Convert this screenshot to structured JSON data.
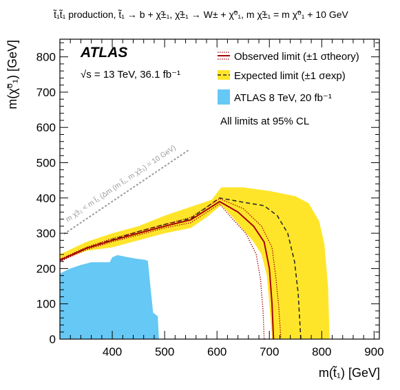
{
  "header": {
    "title": "t̃₁t̃₁ production, t̃₁ → b + χ̃±₁, χ̃±₁ → W± + χ̃⁰₁, m χ̃±₁ = m χ̃⁰₁ + 10 GeV"
  },
  "labels": {
    "atlas": "ATLAS",
    "energy": "√s = 13 TeV, 36.1 fb⁻¹",
    "cl_note": "All limits at 95% CL",
    "diagonal": "m χ̃±₁ < m t̃₁ (Δm (m t̃₁, m χ̃±₁) = 10 GeV)"
  },
  "colors": {
    "observed": "#a50000",
    "expected_band": "#ffe52a",
    "expected_line": "#2b2b2b",
    "atlas8": "#66c8f5",
    "diagonal": "#9a9a9a"
  },
  "chart_data": {
    "type": "area",
    "xlabel": "m(t̃₁) [GeV]",
    "ylabel": "m(χ̃⁰₁) [GeV]",
    "xlim": [
      300,
      910
    ],
    "ylim": [
      0,
      850
    ],
    "xticks": [
      400,
      500,
      600,
      700,
      800,
      900
    ],
    "yticks": [
      0,
      100,
      200,
      300,
      400,
      500,
      600,
      700,
      800
    ],
    "legend": {
      "placement": "top-right",
      "entries": [
        {
          "key": "observed",
          "label": "Observed limit (±1 σtheory)"
        },
        {
          "key": "expected",
          "label": "Expected limit (±1 σexp)"
        },
        {
          "key": "atlas8",
          "label": "ATLAS 8 TeV, 20 fb⁻¹"
        }
      ]
    },
    "series": [
      {
        "key": "expected_band",
        "points": [
          [
            300,
            240
          ],
          [
            350,
            275
          ],
          [
            400,
            300
          ],
          [
            450,
            320
          ],
          [
            500,
            350
          ],
          [
            550,
            375
          ],
          [
            590,
            395
          ],
          [
            608,
            430
          ],
          [
            650,
            430
          ],
          [
            700,
            420
          ],
          [
            750,
            405
          ],
          [
            775,
            385
          ],
          [
            795,
            335
          ],
          [
            805,
            270
          ],
          [
            812,
            150
          ],
          [
            815,
            0
          ],
          [
            705,
            0
          ],
          [
            700,
            100
          ],
          [
            695,
            180
          ],
          [
            685,
            240
          ],
          [
            670,
            275
          ],
          [
            650,
            310
          ],
          [
            630,
            345
          ],
          [
            608,
            380
          ],
          [
            580,
            345
          ],
          [
            550,
            315
          ],
          [
            500,
            300
          ],
          [
            450,
            280
          ],
          [
            400,
            260
          ],
          [
            350,
            250
          ],
          [
            310,
            228
          ],
          [
            300,
            225
          ]
        ]
      },
      {
        "key": "expected",
        "points": [
          [
            300,
            225
          ],
          [
            350,
            258
          ],
          [
            400,
            282
          ],
          [
            450,
            305
          ],
          [
            500,
            325
          ],
          [
            550,
            342
          ],
          [
            605,
            400
          ],
          [
            650,
            388
          ],
          [
            690,
            378
          ],
          [
            715,
            350
          ],
          [
            735,
            300
          ],
          [
            748,
            220
          ],
          [
            755,
            130
          ],
          [
            760,
            0
          ]
        ]
      },
      {
        "key": "observed",
        "points": [
          [
            300,
            223
          ],
          [
            350,
            257
          ],
          [
            400,
            280
          ],
          [
            450,
            300
          ],
          [
            500,
            320
          ],
          [
            550,
            338
          ],
          [
            605,
            390
          ],
          [
            640,
            360
          ],
          [
            670,
            320
          ],
          [
            690,
            275
          ],
          [
            700,
            200
          ],
          [
            705,
            100
          ],
          [
            708,
            0
          ]
        ]
      },
      {
        "key": "observed_up",
        "points": [
          [
            300,
            226
          ],
          [
            350,
            260
          ],
          [
            400,
            285
          ],
          [
            450,
            305
          ],
          [
            500,
            325
          ],
          [
            550,
            345
          ],
          [
            605,
            398
          ],
          [
            650,
            370
          ],
          [
            685,
            320
          ],
          [
            705,
            260
          ],
          [
            712,
            180
          ],
          [
            718,
            90
          ],
          [
            722,
            0
          ]
        ]
      },
      {
        "key": "observed_down",
        "points": [
          [
            300,
            220
          ],
          [
            350,
            253
          ],
          [
            400,
            276
          ],
          [
            450,
            295
          ],
          [
            500,
            315
          ],
          [
            550,
            330
          ],
          [
            605,
            383
          ],
          [
            630,
            340
          ],
          [
            655,
            300
          ],
          [
            675,
            240
          ],
          [
            683,
            170
          ],
          [
            688,
            80
          ],
          [
            690,
            0
          ]
        ]
      },
      {
        "key": "atlas8",
        "points": [
          [
            300,
            186
          ],
          [
            320,
            200
          ],
          [
            340,
            210
          ],
          [
            360,
            218
          ],
          [
            395,
            218
          ],
          [
            400,
            232
          ],
          [
            410,
            238
          ],
          [
            430,
            232
          ],
          [
            445,
            228
          ],
          [
            462,
            225
          ],
          [
            468,
            222
          ],
          [
            472,
            162
          ],
          [
            478,
            75
          ],
          [
            487,
            65
          ],
          [
            489,
            0
          ],
          [
            300,
            0
          ]
        ]
      }
    ],
    "diagonal": {
      "x": [
        308,
        545
      ],
      "y": [
        298,
        535
      ]
    }
  }
}
